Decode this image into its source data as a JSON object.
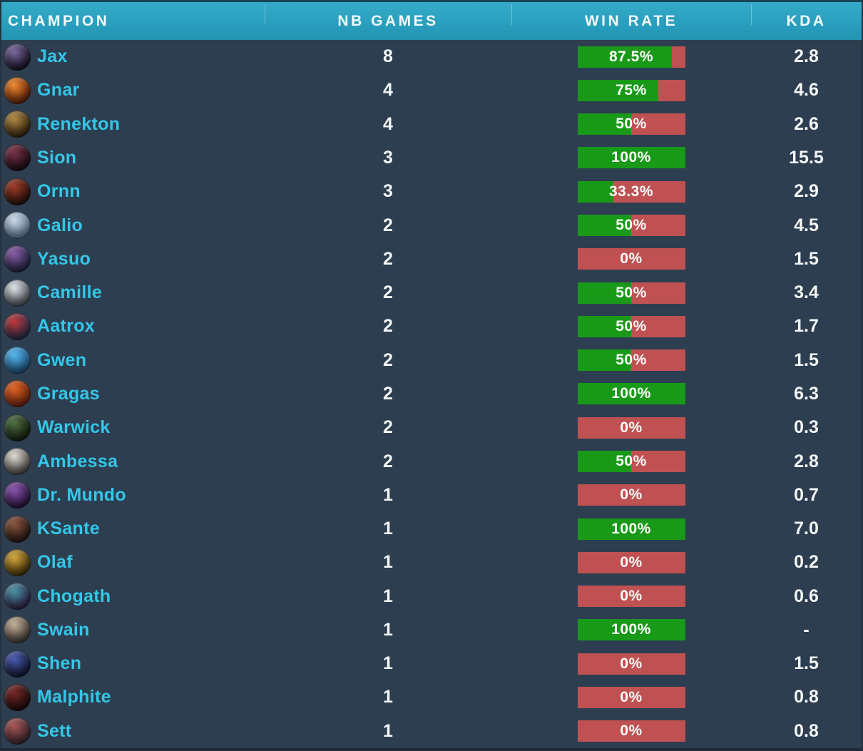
{
  "header": {
    "columns": [
      "CHAMPION",
      "NB GAMES",
      "WIN RATE",
      "KDA"
    ]
  },
  "colors": {
    "header_bg_top": "#35aac9",
    "header_bg_bottom": "#2394b3",
    "body_bg": "#2d3e50",
    "champion_name": "#33c7e8",
    "value_text": "#f4f6f7",
    "win_green": "#189a18",
    "win_red": "#c05152"
  },
  "rows": [
    {
      "champion": "Jax",
      "icon": "jax-icon",
      "icon_colors": [
        "#7a68a0",
        "#140e1e"
      ],
      "nb_games": "8",
      "win_rate_label": "87.5%",
      "win_rate_pct": 87.5,
      "kda": "2.8"
    },
    {
      "champion": "Gnar",
      "icon": "gnar-icon",
      "icon_colors": [
        "#f08a30",
        "#571c06"
      ],
      "nb_games": "4",
      "win_rate_label": "75%",
      "win_rate_pct": 75,
      "kda": "4.6"
    },
    {
      "champion": "Renekton",
      "icon": "renekton-icon",
      "icon_colors": [
        "#b08a42",
        "#2f2010"
      ],
      "nb_games": "4",
      "win_rate_label": "50%",
      "win_rate_pct": 50,
      "kda": "2.6"
    },
    {
      "champion": "Sion",
      "icon": "sion-icon",
      "icon_colors": [
        "#7a3348",
        "#170a12"
      ],
      "nb_games": "3",
      "win_rate_label": "100%",
      "win_rate_pct": 100,
      "kda": "15.5"
    },
    {
      "champion": "Ornn",
      "icon": "ornn-icon",
      "icon_colors": [
        "#a03c28",
        "#200d0a"
      ],
      "nb_games": "3",
      "win_rate_label": "33.3%",
      "win_rate_pct": 33.3,
      "kda": "2.9"
    },
    {
      "champion": "Galio",
      "icon": "galio-icon",
      "icon_colors": [
        "#cdd9e6",
        "#53708c"
      ],
      "nb_games": "2",
      "win_rate_label": "50%",
      "win_rate_pct": 50,
      "kda": "4.5"
    },
    {
      "champion": "Yasuo",
      "icon": "yasuo-icon",
      "icon_colors": [
        "#8a5aa8",
        "#1a2038"
      ],
      "nb_games": "2",
      "win_rate_label": "0%",
      "win_rate_pct": 0,
      "kda": "1.5"
    },
    {
      "champion": "Camille",
      "icon": "camille-icon",
      "icon_colors": [
        "#dfe3e6",
        "#3f474e"
      ],
      "nb_games": "2",
      "win_rate_label": "50%",
      "win_rate_pct": 50,
      "kda": "3.4"
    },
    {
      "champion": "Aatrox",
      "icon": "aatrox-icon",
      "icon_colors": [
        "#c03838",
        "#1f2a48"
      ],
      "nb_games": "2",
      "win_rate_label": "50%",
      "win_rate_pct": 50,
      "kda": "1.7"
    },
    {
      "champion": "Gwen",
      "icon": "gwen-icon",
      "icon_colors": [
        "#52b8ec",
        "#1c4a74"
      ],
      "nb_games": "2",
      "win_rate_label": "50%",
      "win_rate_pct": 50,
      "kda": "1.5"
    },
    {
      "champion": "Gragas",
      "icon": "gragas-icon",
      "icon_colors": [
        "#e06424",
        "#611f0c"
      ],
      "nb_games": "2",
      "win_rate_label": "100%",
      "win_rate_pct": 100,
      "kda": "6.3"
    },
    {
      "champion": "Warwick",
      "icon": "warwick-icon",
      "icon_colors": [
        "#4f7040",
        "#101a0e"
      ],
      "nb_games": "2",
      "win_rate_label": "0%",
      "win_rate_pct": 0,
      "kda": "0.3"
    },
    {
      "champion": "Ambessa",
      "icon": "ambessa-icon",
      "icon_colors": [
        "#e0dcd4",
        "#433f3b"
      ],
      "nb_games": "2",
      "win_rate_label": "50%",
      "win_rate_pct": 50,
      "kda": "2.8"
    },
    {
      "champion": "Dr. Mundo",
      "icon": "dr-mundo-icon",
      "icon_colors": [
        "#8a55b0",
        "#221033"
      ],
      "nb_games": "1",
      "win_rate_label": "0%",
      "win_rate_pct": 0,
      "kda": "0.7"
    },
    {
      "champion": "KSante",
      "icon": "ksante-icon",
      "icon_colors": [
        "#8a5540",
        "#231410"
      ],
      "nb_games": "1",
      "win_rate_label": "100%",
      "win_rate_pct": 100,
      "kda": "7.0"
    },
    {
      "champion": "Olaf",
      "icon": "olaf-icon",
      "icon_colors": [
        "#d4a83e",
        "#3f2c08"
      ],
      "nb_games": "1",
      "win_rate_label": "0%",
      "win_rate_pct": 0,
      "kda": "0.2"
    },
    {
      "champion": "Chogath",
      "icon": "chogath-icon",
      "icon_colors": [
        "#4a94a4",
        "#2c1c40"
      ],
      "nb_games": "1",
      "win_rate_label": "0%",
      "win_rate_pct": 0,
      "kda": "0.6"
    },
    {
      "champion": "Swain",
      "icon": "swain-icon",
      "icon_colors": [
        "#c4b098",
        "#3a3530"
      ],
      "nb_games": "1",
      "win_rate_label": "100%",
      "win_rate_pct": 100,
      "kda": "-"
    },
    {
      "champion": "Shen",
      "icon": "shen-icon",
      "icon_colors": [
        "#4a5ab0",
        "#10152b"
      ],
      "nb_games": "1",
      "win_rate_label": "0%",
      "win_rate_pct": 0,
      "kda": "1.5"
    },
    {
      "champion": "Malphite",
      "icon": "malphite-icon",
      "icon_colors": [
        "#7a2828",
        "#190b0b"
      ],
      "nb_games": "1",
      "win_rate_label": "0%",
      "win_rate_pct": 0,
      "kda": "0.8"
    },
    {
      "champion": "Sett",
      "icon": "sett-icon",
      "icon_colors": [
        "#a85454",
        "#33242c"
      ],
      "nb_games": "1",
      "win_rate_label": "0%",
      "win_rate_pct": 0,
      "kda": "0.8"
    }
  ]
}
